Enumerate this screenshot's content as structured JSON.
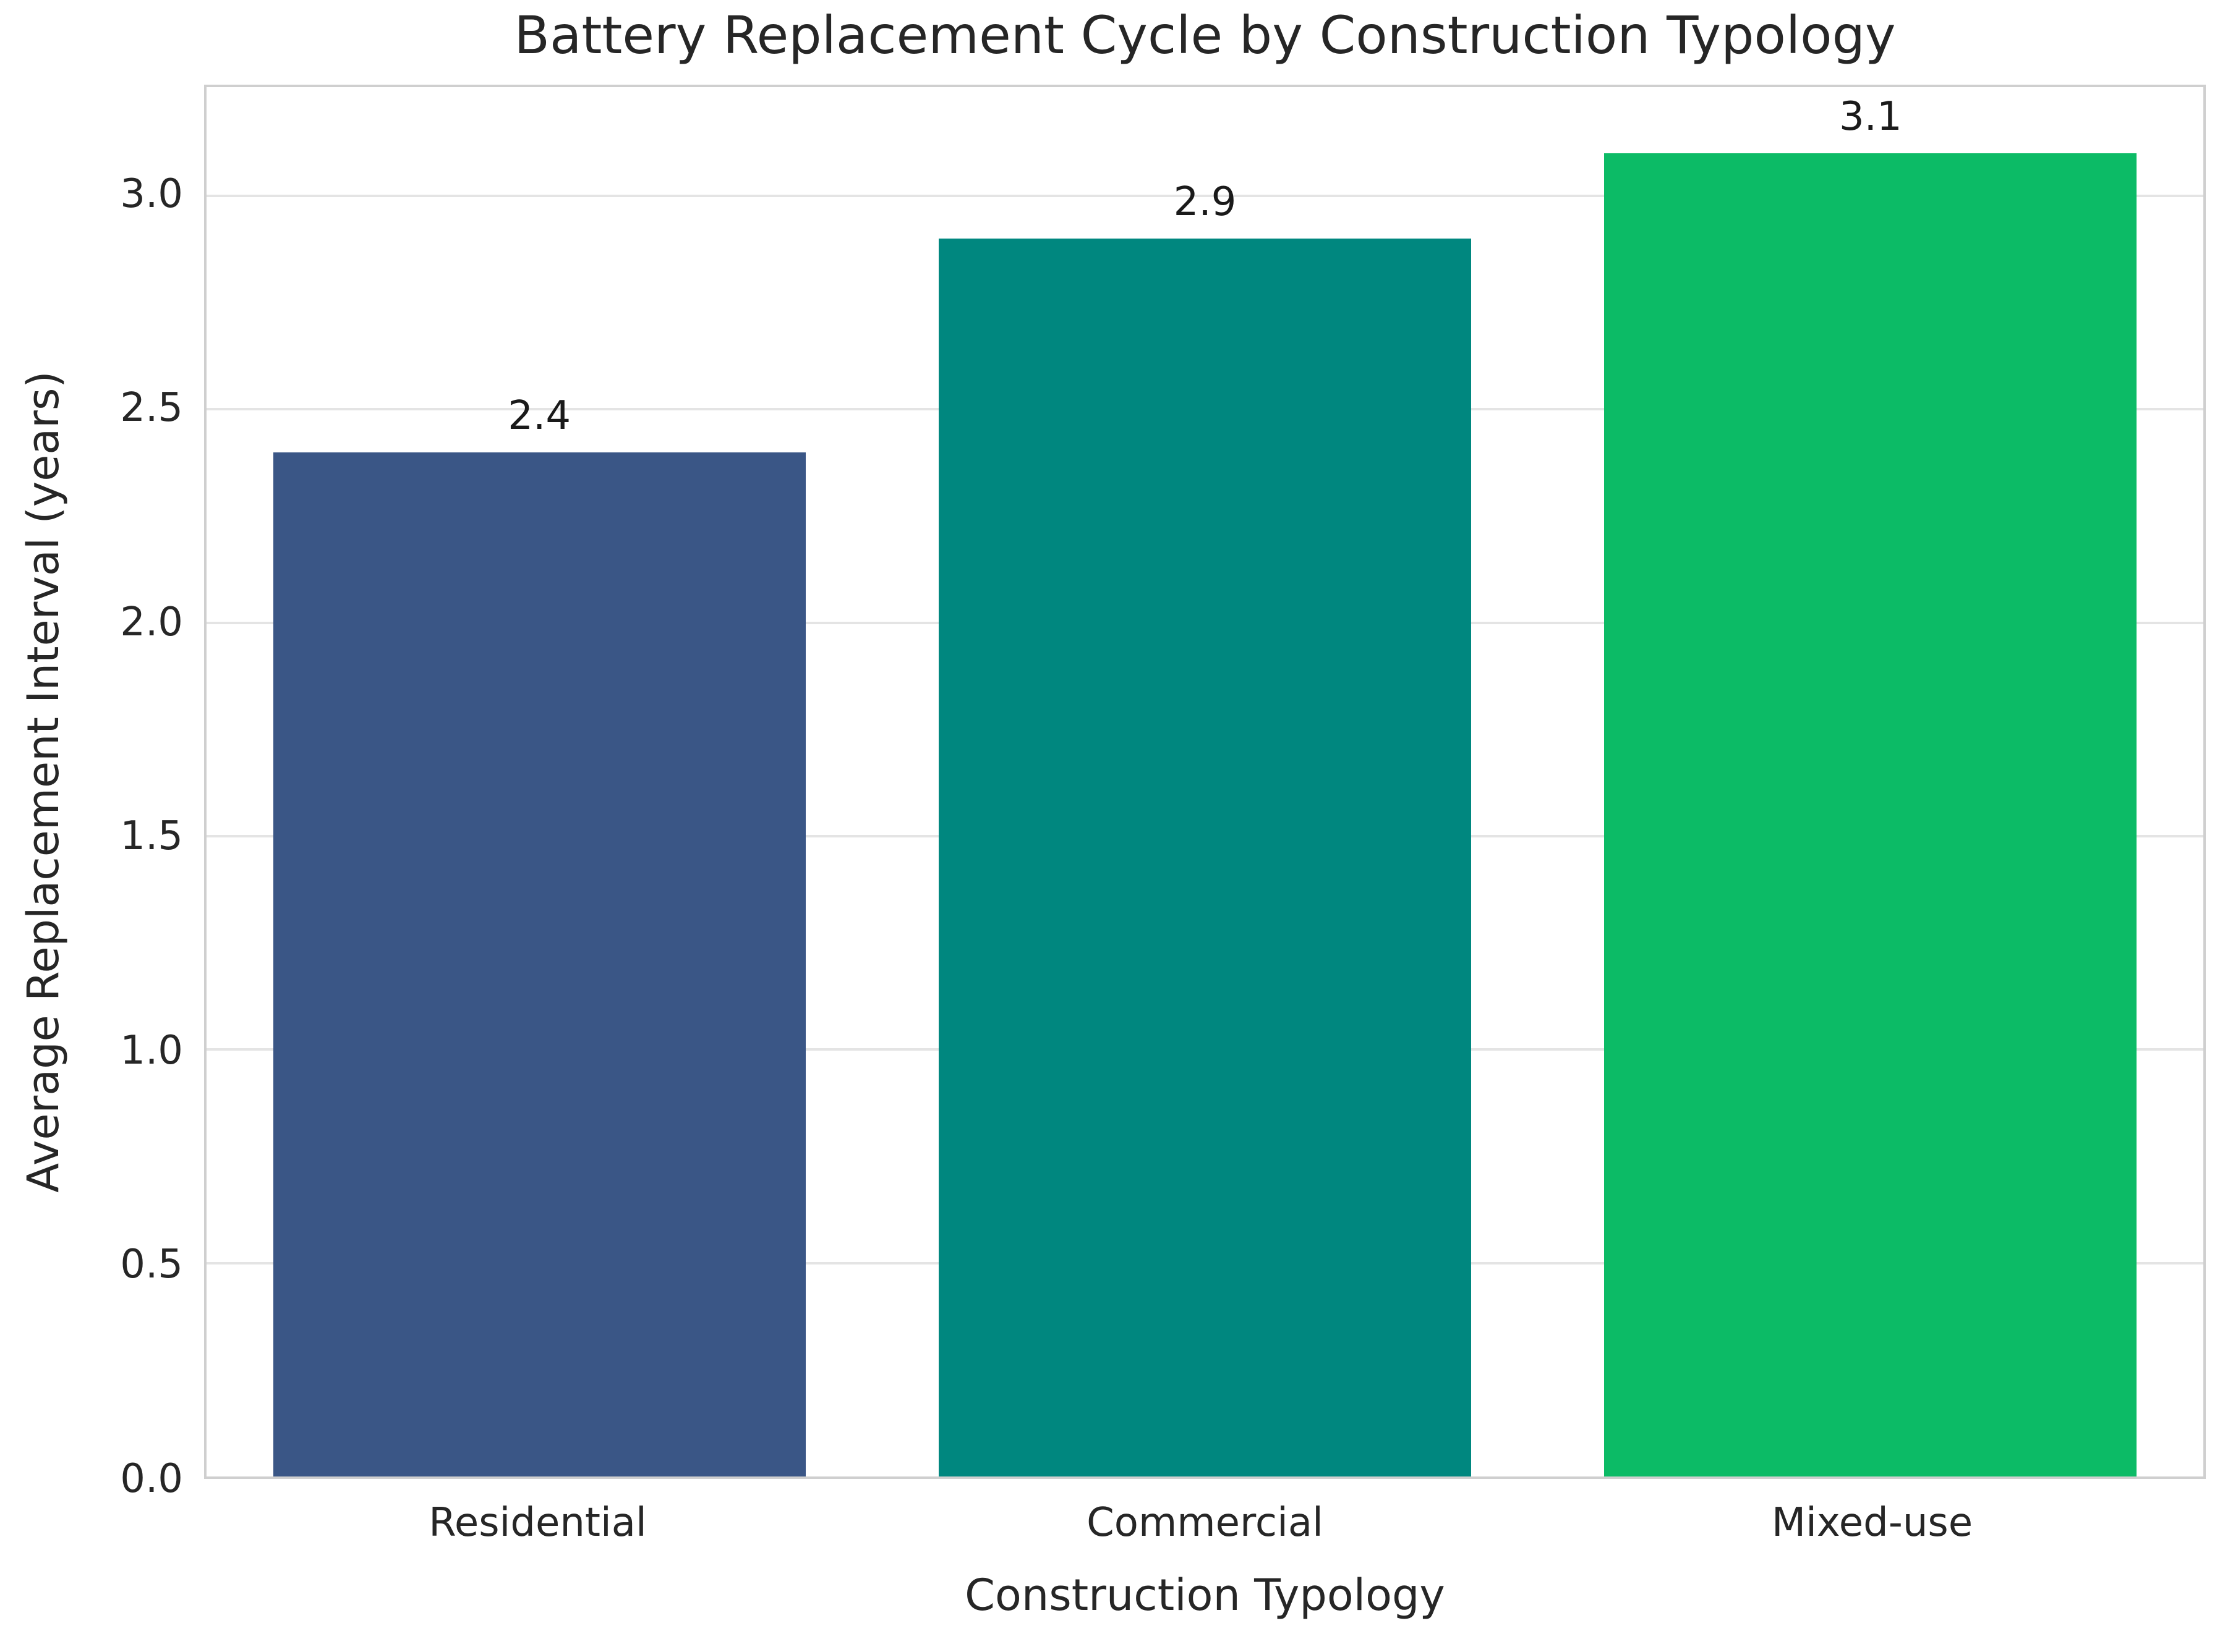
{
  "chart_data": {
    "type": "bar",
    "title": "Battery Replacement Cycle by Construction Typology",
    "xlabel": "Construction Typology",
    "ylabel": "Average Replacement Interval (years)",
    "categories": [
      "Residential",
      "Commercial",
      "Mixed-use"
    ],
    "values": [
      2.4,
      2.9,
      3.1
    ],
    "value_labels": [
      "2.4",
      "2.9",
      "3.1"
    ],
    "bar_colors": [
      "#3a5686",
      "#00877f",
      "#0cbb66"
    ],
    "yticks": [
      0.0,
      0.5,
      1.0,
      1.5,
      2.0,
      2.5,
      3.0
    ],
    "ytick_labels": [
      "0.0",
      "0.5",
      "1.0",
      "1.5",
      "2.0",
      "2.5",
      "3.0"
    ],
    "ylim": [
      0,
      3.255
    ],
    "bar_width_fraction": 0.8,
    "grid": true,
    "legend_position": "none",
    "colors": {
      "grid": "#e4e4e4",
      "spine": "#cfcfcf",
      "text": "#262626",
      "background": "#ffffff"
    }
  }
}
